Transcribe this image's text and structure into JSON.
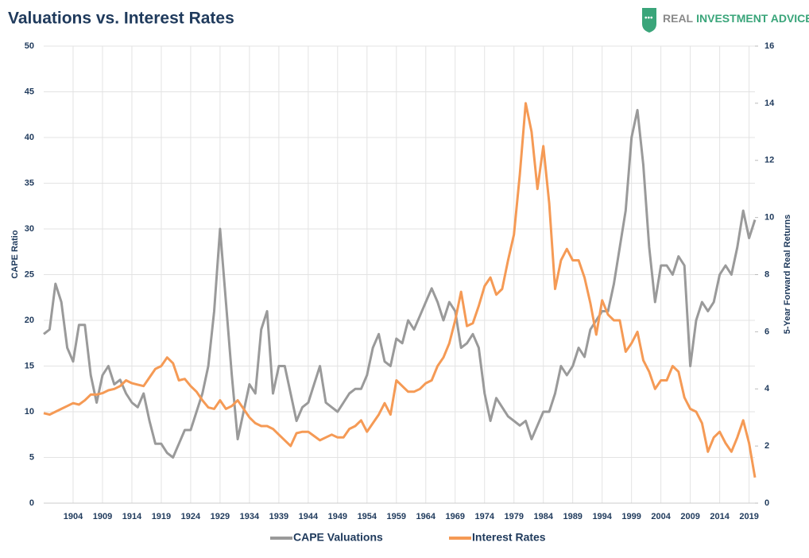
{
  "brand": [
    "REAL",
    "INVESTMENT ADVICE"
  ],
  "chart_data": {
    "type": "line",
    "title": "Valuations vs. Interest Rates",
    "y_label": "CAPE Ratio",
    "y2_label": "5-Year Forward Real Returns",
    "x": [
      1899,
      1900,
      1901,
      1902,
      1903,
      1904,
      1905,
      1906,
      1907,
      1908,
      1909,
      1910,
      1911,
      1912,
      1913,
      1914,
      1915,
      1916,
      1917,
      1918,
      1919,
      1920,
      1921,
      1922,
      1923,
      1924,
      1925,
      1926,
      1927,
      1928,
      1929,
      1930,
      1931,
      1932,
      1933,
      1934,
      1935,
      1936,
      1937,
      1938,
      1939,
      1940,
      1941,
      1942,
      1943,
      1944,
      1945,
      1946,
      1947,
      1948,
      1949,
      1950,
      1951,
      1952,
      1953,
      1954,
      1955,
      1956,
      1957,
      1958,
      1959,
      1960,
      1961,
      1962,
      1963,
      1964,
      1965,
      1966,
      1967,
      1968,
      1969,
      1970,
      1971,
      1972,
      1973,
      1974,
      1975,
      1976,
      1977,
      1978,
      1979,
      1980,
      1981,
      1982,
      1983,
      1984,
      1985,
      1986,
      1987,
      1988,
      1989,
      1990,
      1991,
      1992,
      1993,
      1994,
      1995,
      1996,
      1997,
      1998,
      1999,
      2000,
      2001,
      2002,
      2003,
      2004,
      2005,
      2006,
      2007,
      2008,
      2009,
      2010,
      2011,
      2012,
      2013,
      2014,
      2015,
      2016,
      2017,
      2018,
      2019,
      2020
    ],
    "series": [
      {
        "name": "CAPE Valuations",
        "color": "#9a9a9a",
        "axis": "y",
        "values": [
          18.5,
          19,
          24,
          22,
          17,
          15.5,
          19.5,
          19.5,
          14,
          11,
          14,
          15,
          13,
          13.5,
          12,
          11,
          10.5,
          12,
          9,
          6.5,
          6.5,
          5.5,
          5,
          6.5,
          8,
          8,
          10,
          12,
          15,
          21,
          30,
          22,
          14,
          7,
          10,
          13,
          12,
          19,
          21,
          12,
          15,
          15,
          12,
          9,
          10.5,
          11,
          13,
          15,
          11,
          10.5,
          10,
          11,
          12,
          12.5,
          12.5,
          14,
          17,
          18.5,
          15.5,
          15,
          18,
          17.5,
          20,
          19,
          20.5,
          22,
          23.5,
          22,
          20,
          22,
          21,
          17,
          17.5,
          18.5,
          17,
          12,
          9,
          11.5,
          10.5,
          9.5,
          9,
          8.5,
          9,
          7,
          8.5,
          10,
          10,
          12,
          15,
          14,
          15,
          17,
          16,
          19,
          20,
          21,
          21,
          24,
          28,
          32,
          40,
          43,
          37,
          28,
          22,
          26,
          26,
          25,
          27,
          26,
          15,
          20,
          22,
          21,
          22,
          25,
          26,
          25,
          28,
          32,
          29,
          31
        ]
      },
      {
        "name": "Interest Rates",
        "color": "#f59a55",
        "axis": "y2",
        "values": [
          3.15,
          3.1,
          3.2,
          3.3,
          3.4,
          3.5,
          3.45,
          3.6,
          3.8,
          3.8,
          3.85,
          3.95,
          4.0,
          4.1,
          4.3,
          4.2,
          4.15,
          4.1,
          4.4,
          4.7,
          4.8,
          5.1,
          4.9,
          4.3,
          4.35,
          4.1,
          3.9,
          3.6,
          3.35,
          3.3,
          3.6,
          3.3,
          3.4,
          3.6,
          3.3,
          3.0,
          2.8,
          2.7,
          2.7,
          2.6,
          2.4,
          2.2,
          2.0,
          2.45,
          2.5,
          2.5,
          2.35,
          2.2,
          2.3,
          2.4,
          2.3,
          2.3,
          2.6,
          2.7,
          2.9,
          2.5,
          2.8,
          3.1,
          3.5,
          3.1,
          4.3,
          4.1,
          3.9,
          3.9,
          4.0,
          4.2,
          4.3,
          4.8,
          5.1,
          5.6,
          6.4,
          7.4,
          6.2,
          6.3,
          6.9,
          7.6,
          7.9,
          7.3,
          7.5,
          8.5,
          9.4,
          11.5,
          14,
          13,
          11,
          12.5,
          10.5,
          7.5,
          8.5,
          8.9,
          8.5,
          8.5,
          7.9,
          7.0,
          5.9,
          7.1,
          6.6,
          6.4,
          6.4,
          5.3,
          5.6,
          6.0,
          5.0,
          4.6,
          4.0,
          4.3,
          4.3,
          4.8,
          4.6,
          3.7,
          3.3,
          3.2,
          2.8,
          1.8,
          2.3,
          2.5,
          2.1,
          1.8,
          2.3,
          2.9,
          2.1,
          0.9
        ]
      }
    ],
    "xlim": [
      1899,
      2020
    ],
    "xticks": [
      1904,
      1909,
      1914,
      1919,
      1924,
      1929,
      1934,
      1939,
      1944,
      1949,
      1954,
      1959,
      1964,
      1969,
      1974,
      1979,
      1984,
      1989,
      1994,
      1999,
      2004,
      2009,
      2014,
      2019
    ],
    "ylim": [
      0,
      50
    ],
    "yticks": [
      0,
      5,
      10,
      15,
      20,
      25,
      30,
      35,
      40,
      45,
      50
    ],
    "y2lim": [
      0,
      16
    ],
    "y2ticks": [
      0,
      2,
      4,
      6,
      8,
      10,
      12,
      14,
      16
    ],
    "grid": true,
    "legend": "bottom"
  }
}
